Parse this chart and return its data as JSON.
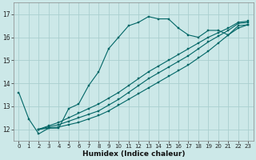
{
  "xlabel": "Humidex (Indice chaleur)",
  "bg_color": "#cce8e8",
  "grid_color": "#aacfcf",
  "line_color": "#006666",
  "xlim": [
    -0.5,
    23.5
  ],
  "ylim": [
    11.5,
    17.5
  ],
  "xticks": [
    0,
    1,
    2,
    3,
    4,
    5,
    6,
    7,
    8,
    9,
    10,
    11,
    12,
    13,
    14,
    15,
    16,
    17,
    18,
    19,
    20,
    21,
    22,
    23
  ],
  "yticks": [
    12,
    13,
    14,
    15,
    16,
    17
  ],
  "series1_x": [
    0,
    1,
    2,
    3,
    4,
    5,
    6,
    7,
    8,
    9,
    10,
    11,
    12,
    13,
    14,
    15,
    16,
    17,
    18,
    19,
    20,
    21,
    22,
    23
  ],
  "series1_y": [
    13.6,
    12.45,
    11.8,
    12.05,
    12.05,
    12.9,
    13.1,
    13.9,
    14.5,
    15.5,
    16.0,
    16.5,
    16.65,
    16.9,
    16.8,
    16.8,
    16.4,
    16.1,
    16.0,
    16.3,
    16.3,
    16.1,
    16.5,
    16.55
  ],
  "series2_x": [
    2,
    3,
    4,
    5,
    6,
    7,
    8,
    9,
    10,
    11,
    12,
    13,
    14,
    15,
    16,
    17,
    18,
    19,
    20,
    21,
    22,
    23
  ],
  "series2_y": [
    12.0,
    12.05,
    12.1,
    12.2,
    12.3,
    12.45,
    12.6,
    12.8,
    13.05,
    13.3,
    13.55,
    13.8,
    14.05,
    14.3,
    14.55,
    14.8,
    15.1,
    15.4,
    15.75,
    16.1,
    16.4,
    16.55
  ],
  "series3_x": [
    2,
    3,
    4,
    5,
    6,
    7,
    8,
    9,
    10,
    11,
    12,
    13,
    14,
    15,
    16,
    17,
    18,
    19,
    20,
    21,
    22,
    23
  ],
  "series3_y": [
    12.0,
    12.1,
    12.2,
    12.35,
    12.5,
    12.65,
    12.8,
    13.05,
    13.3,
    13.6,
    13.9,
    14.2,
    14.45,
    14.7,
    14.95,
    15.2,
    15.5,
    15.8,
    16.05,
    16.3,
    16.6,
    16.65
  ],
  "series4_x": [
    2,
    3,
    4,
    5,
    6,
    7,
    8,
    9,
    10,
    11,
    12,
    13,
    14,
    15,
    16,
    17,
    18,
    19,
    20,
    21,
    22,
    23
  ],
  "series4_y": [
    12.0,
    12.15,
    12.3,
    12.5,
    12.7,
    12.9,
    13.1,
    13.35,
    13.6,
    13.9,
    14.2,
    14.5,
    14.75,
    15.0,
    15.25,
    15.5,
    15.75,
    16.0,
    16.2,
    16.4,
    16.65,
    16.7
  ]
}
